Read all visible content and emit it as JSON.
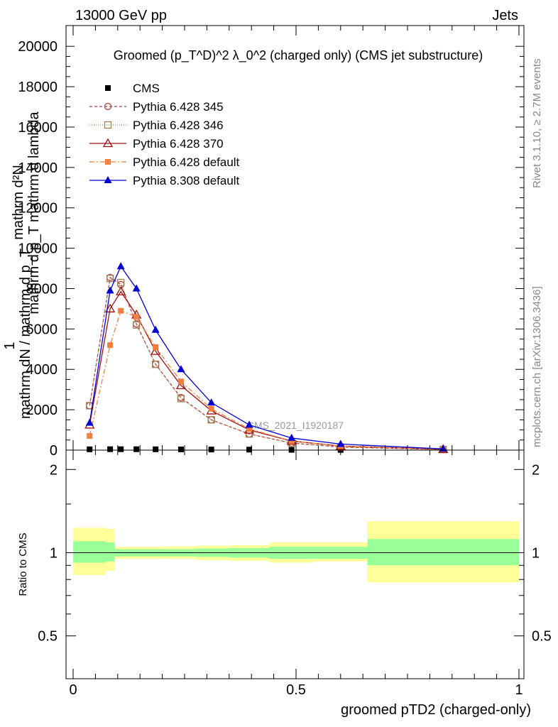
{
  "header": {
    "left": "13000 GeV pp",
    "right": "Jets"
  },
  "side_labels": {
    "rivet": "Rivet 3.1.10, ≥ 2.7M events",
    "mcplots": "mcplots.cern.ch [arXiv:1306.3436]"
  },
  "colors": {
    "cms": "#000000",
    "p345": "#b04040",
    "p346": "#a08050",
    "p370": "#a01010",
    "p6def": "#f08040",
    "p8def": "#0000d0",
    "band_inner": "#99ff99",
    "band_outer": "#ffff99"
  },
  "chart_data": [
    {
      "type": "line",
      "title": "Groomed (p_T^D)^2 λ_0^2  (charged only) (CMS jet substructure)",
      "ylabel": "1 / mathrm dN / mathrm d p_T mathrm d lambda ... mathrm d^2N",
      "ylabel_lines": [
        "mathrm d²N",
        "mathrm d p_T mathrm d lambda",
        "1",
        "mathrm dN / mathrm d p_T"
      ],
      "watermark": "CMS_2021_I1920187",
      "xlim": [
        0,
        1
      ],
      "ylim": [
        0,
        20500
      ],
      "yticks": [
        0,
        2000,
        4000,
        6000,
        8000,
        10000,
        12000,
        14000,
        16000,
        18000,
        20000
      ],
      "ytick_labels": [
        "0",
        "2000",
        "4000",
        "6000",
        "8000",
        "10000",
        "12000",
        "14000",
        "16000",
        "18000",
        "20000"
      ],
      "legend_position": "top-left",
      "series": [
        {
          "key": "cms",
          "name": "CMS",
          "marker": "square-filled",
          "x": [
            0.037,
            0.083,
            0.107,
            0.142,
            0.185,
            0.242,
            0.31,
            0.395,
            0.49,
            0.6,
            0.83
          ],
          "y": [
            40,
            45,
            45,
            45,
            40,
            35,
            30,
            25,
            15,
            10,
            5
          ]
        },
        {
          "key": "p345",
          "name": "Pythia 6.428 345",
          "marker": "circle-open",
          "dash": "4,3",
          "x": [
            0.037,
            0.083,
            0.107,
            0.142,
            0.185,
            0.242,
            0.31,
            0.395,
            0.49,
            0.6,
            0.83
          ],
          "y": [
            2200,
            8550,
            8200,
            6250,
            4250,
            2600,
            1500,
            800,
            350,
            150,
            30
          ]
        },
        {
          "key": "p346",
          "name": "Pythia 6.428 346",
          "marker": "square-open",
          "dash": "1,2",
          "x": [
            0.037,
            0.083,
            0.107,
            0.142,
            0.185,
            0.242,
            0.31,
            0.395,
            0.49,
            0.6,
            0.83
          ],
          "y": [
            2200,
            8500,
            8300,
            6200,
            4250,
            2550,
            1500,
            800,
            350,
            150,
            30
          ]
        },
        {
          "key": "p370",
          "name": "Pythia 6.428 370",
          "marker": "triangle-open",
          "dash": "",
          "x": [
            0.037,
            0.083,
            0.107,
            0.142,
            0.185,
            0.242,
            0.31,
            0.395,
            0.49,
            0.6,
            0.83
          ],
          "y": [
            1250,
            7000,
            7850,
            6700,
            4900,
            3200,
            1950,
            1000,
            450,
            200,
            40
          ]
        },
        {
          "key": "p6def",
          "name": "Pythia 6.428 default",
          "marker": "square-filled",
          "dash": "7,3,2,3",
          "x": [
            0.037,
            0.083,
            0.107,
            0.142,
            0.185,
            0.242,
            0.31,
            0.395,
            0.49,
            0.6,
            0.83
          ],
          "y": [
            700,
            5200,
            6900,
            6600,
            5100,
            3400,
            2050,
            1050,
            450,
            200,
            40
          ]
        },
        {
          "key": "p8def",
          "name": "Pythia 8.308 default",
          "marker": "triangle-filled",
          "dash": "",
          "x": [
            0.037,
            0.083,
            0.107,
            0.142,
            0.185,
            0.242,
            0.31,
            0.395,
            0.49,
            0.6,
            0.83
          ],
          "y": [
            1350,
            7900,
            9100,
            8000,
            5950,
            4000,
            2350,
            1250,
            600,
            300,
            60
          ]
        }
      ]
    },
    {
      "type": "area",
      "ylabel": "Ratio to CMS",
      "xlabel": "groomed pTD2 (charged-only)",
      "xlim": [
        0,
        1
      ],
      "ylim": [
        0.35,
        2.35
      ],
      "yscale": "log",
      "xticks": [
        0,
        0.5,
        1
      ],
      "xtick_labels": [
        "0",
        "0.5",
        "1"
      ],
      "yticks": [
        0.5,
        1,
        2
      ],
      "ytick_labels": [
        "0.5",
        "1",
        "2"
      ],
      "reference_line": 1,
      "bins": [
        {
          "x0": 0.0,
          "x1": 0.073,
          "inner": [
            0.92,
            1.1
          ],
          "outer": [
            0.83,
            1.23
          ]
        },
        {
          "x0": 0.073,
          "x1": 0.093,
          "inner": [
            0.93,
            1.09
          ],
          "outer": [
            0.86,
            1.22
          ]
        },
        {
          "x0": 0.093,
          "x1": 0.125,
          "inner": [
            0.97,
            1.03
          ],
          "outer": [
            0.95,
            1.05
          ]
        },
        {
          "x0": 0.125,
          "x1": 0.16,
          "inner": [
            0.97,
            1.03
          ],
          "outer": [
            0.95,
            1.05
          ]
        },
        {
          "x0": 0.16,
          "x1": 0.21,
          "inner": [
            0.97,
            1.03
          ],
          "outer": [
            0.95,
            1.05
          ]
        },
        {
          "x0": 0.21,
          "x1": 0.275,
          "inner": [
            0.97,
            1.03
          ],
          "outer": [
            0.95,
            1.055
          ]
        },
        {
          "x0": 0.275,
          "x1": 0.35,
          "inner": [
            0.965,
            1.035
          ],
          "outer": [
            0.94,
            1.06
          ]
        },
        {
          "x0": 0.35,
          "x1": 0.44,
          "inner": [
            0.96,
            1.04
          ],
          "outer": [
            0.935,
            1.065
          ]
        },
        {
          "x0": 0.44,
          "x1": 0.54,
          "inner": [
            0.95,
            1.05
          ],
          "outer": [
            0.92,
            1.09
          ]
        },
        {
          "x0": 0.54,
          "x1": 0.66,
          "inner": [
            0.95,
            1.05
          ],
          "outer": [
            0.93,
            1.09
          ]
        },
        {
          "x0": 0.66,
          "x1": 1.0,
          "inner": [
            0.9,
            1.12
          ],
          "outer": [
            0.78,
            1.3
          ]
        }
      ]
    }
  ]
}
